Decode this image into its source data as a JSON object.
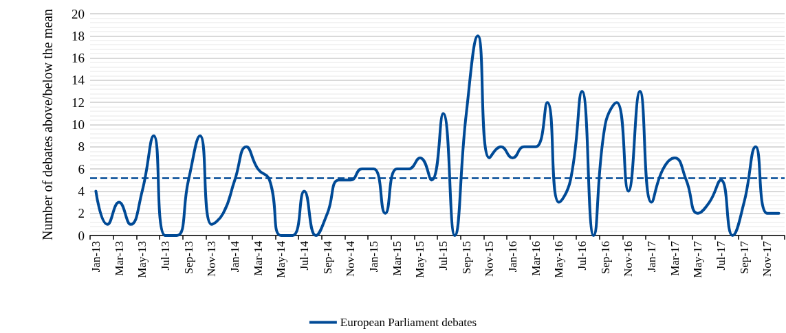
{
  "chart_data": {
    "type": "line",
    "ylabel": "Number of debates above/below the mean",
    "categories": [
      "Jan-13",
      null,
      "Mar-13",
      null,
      "May-13",
      null,
      "Jul-13",
      null,
      "Sep-13",
      null,
      "Nov-13",
      null,
      "Jan-14",
      null,
      "Mar-14",
      null,
      "May-14",
      null,
      "Jul-14",
      null,
      "Sep-14",
      null,
      "Nov-14",
      null,
      "Jan-15",
      null,
      "Mar-15",
      null,
      "May-15",
      null,
      "Jul-15",
      null,
      "Sep-15",
      null,
      "Nov-15",
      null,
      "Jan-16",
      null,
      "Mar-16",
      null,
      "May-16",
      null,
      "Jul-16",
      null,
      "Sep-16",
      null,
      "Nov-16",
      null,
      "Jan-17",
      null,
      "Mar-17",
      null,
      "May-17",
      null,
      "Jul-17",
      null,
      "Sep-17",
      null,
      "Nov-17",
      null
    ],
    "series": [
      {
        "name": "European Parliament debates",
        "color": "#004a96",
        "values": [
          4,
          1,
          3,
          1,
          4,
          9,
          0,
          0,
          5,
          9,
          1,
          2,
          5,
          8,
          6,
          5,
          0,
          0,
          4,
          0,
          2,
          5,
          5,
          6,
          6,
          2,
          6,
          6,
          7,
          5,
          11,
          0,
          11,
          18,
          7,
          8,
          7,
          8,
          8,
          12,
          3,
          5,
          13,
          0,
          10,
          12,
          4,
          13,
          3,
          6,
          7,
          5,
          2,
          3,
          5,
          0,
          3,
          8,
          2,
          2
        ]
      }
    ],
    "ref_lines": [
      {
        "axis": "y",
        "value": 5.2,
        "color": "#004a96",
        "line_style": "dashed"
      }
    ],
    "ylim": [
      0,
      20
    ],
    "yticks": [
      0,
      2,
      4,
      6,
      8,
      10,
      12,
      14,
      16,
      18,
      20
    ],
    "grid": "y",
    "legend": "bottom",
    "marker": "none",
    "line_style": "solid"
  }
}
